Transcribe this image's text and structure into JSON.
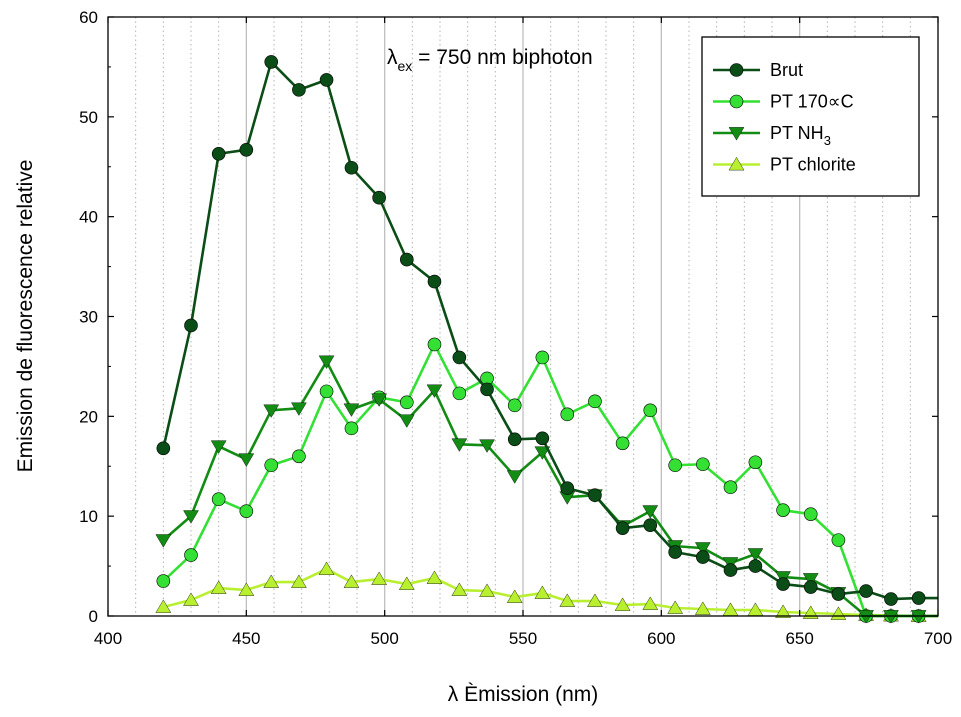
{
  "chart_data": {
    "type": "line",
    "xlabel": "λ Èmission (nm)",
    "ylabel": "Emission de fluorescence relative",
    "xlim": [
      400,
      700
    ],
    "ylim": [
      0,
      60
    ],
    "xticks": [
      400,
      450,
      500,
      550,
      600,
      650,
      700
    ],
    "yticks": [
      0,
      10,
      20,
      30,
      40,
      50,
      60
    ],
    "grid": "vertical lines at 450, 500, 550, 600, 650 plus dotted minor vertical lines",
    "legend_position": "top-right",
    "annotation": {
      "symbol": "λ",
      "subscript": "ex",
      "text": " = 750 nm biphoton"
    },
    "x": [
      420,
      430,
      440,
      450,
      459,
      469,
      479,
      488,
      498,
      508,
      518,
      527,
      537,
      547,
      557,
      566,
      576,
      586,
      596,
      605,
      615,
      625,
      634,
      644,
      654,
      664,
      674,
      683,
      693
    ],
    "series": [
      {
        "name": "Brut",
        "label_main": "Brut",
        "label_sub": "",
        "color": "#0b4d16",
        "marker": "circle",
        "values": [
          16.8,
          29.1,
          46.3,
          46.7,
          55.5,
          52.7,
          53.7,
          44.9,
          41.9,
          35.7,
          33.5,
          25.9,
          22.7,
          17.7,
          17.8,
          12.8,
          12.1,
          8.8,
          9.1,
          6.4,
          5.9,
          4.6,
          5.0,
          3.2,
          2.9,
          2.2,
          2.5,
          1.7,
          1.8
        ]
      },
      {
        "name": "PT 170∝C",
        "label_main": "PT 170∝C",
        "label_sub": "",
        "color": "#33e033",
        "marker": "circle",
        "values": [
          3.5,
          6.1,
          11.7,
          10.5,
          15.1,
          16.0,
          22.5,
          18.8,
          21.9,
          21.4,
          27.2,
          22.3,
          23.8,
          21.1,
          25.9,
          20.2,
          21.5,
          17.3,
          20.6,
          15.1,
          15.2,
          12.9,
          15.4,
          10.6,
          10.2,
          7.6,
          0.0,
          0.0,
          0.0
        ]
      },
      {
        "name": "PT NH3",
        "label_main": "PT NH",
        "label_sub": "3",
        "color": "#138c13",
        "marker": "triangle-down",
        "values": [
          7.6,
          10.0,
          17.0,
          15.7,
          20.6,
          20.8,
          25.5,
          20.7,
          21.7,
          19.6,
          22.6,
          17.2,
          17.1,
          14.0,
          16.4,
          11.9,
          12.1,
          9.0,
          10.5,
          7.0,
          6.8,
          5.3,
          6.2,
          3.9,
          3.7,
          2.3,
          0.0,
          0.0,
          0.0
        ]
      },
      {
        "name": "PT chlorite",
        "label_main": "PT chlorite",
        "label_sub": "",
        "color": "#b8f030",
        "marker": "triangle-up",
        "values": [
          0.9,
          1.6,
          2.8,
          2.6,
          3.4,
          3.4,
          4.7,
          3.4,
          3.7,
          3.2,
          3.8,
          2.6,
          2.5,
          1.9,
          2.3,
          1.5,
          1.5,
          1.1,
          1.2,
          0.8,
          0.7,
          0.6,
          0.6,
          0.4,
          0.3,
          0.2,
          0.1,
          0.05,
          0.0
        ]
      }
    ]
  }
}
